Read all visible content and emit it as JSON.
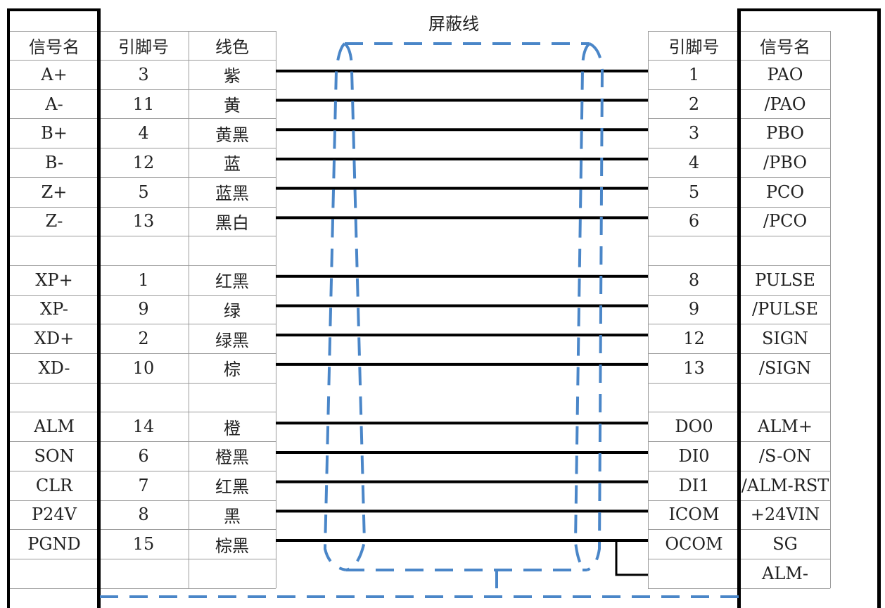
{
  "title": "屏蔽线",
  "left_headers": [
    "信号名",
    "引脚号",
    "线色"
  ],
  "right_headers": [
    "引脚号",
    "信号名"
  ],
  "rows": [
    {
      "left_signal": "A+",
      "left_pin": "3",
      "color": "紫",
      "right_pin": "1",
      "right_signal": "PAO",
      "wire": true
    },
    {
      "left_signal": "A-",
      "left_pin": "11",
      "color": "黄",
      "right_pin": "2",
      "right_signal": "/PAO",
      "wire": true
    },
    {
      "left_signal": "B+",
      "left_pin": "4",
      "color": "黄黑",
      "right_pin": "3",
      "right_signal": "PBO",
      "wire": true
    },
    {
      "left_signal": "B-",
      "left_pin": "12",
      "color": "蓝",
      "right_pin": "4",
      "right_signal": "/PBO",
      "wire": true
    },
    {
      "left_signal": "Z+",
      "left_pin": "5",
      "color": "蓝黑",
      "right_pin": "5",
      "right_signal": "PCO",
      "wire": true
    },
    {
      "left_signal": "Z-",
      "left_pin": "13",
      "color": "黑白",
      "right_pin": "6",
      "right_signal": "/PCO",
      "wire": true
    },
    {
      "left_signal": "",
      "left_pin": "",
      "color": "",
      "right_pin": "",
      "right_signal": "",
      "wire": false
    },
    {
      "left_signal": "XP+",
      "left_pin": "1",
      "color": "红黑",
      "right_pin": "8",
      "right_signal": "PULSE",
      "wire": true
    },
    {
      "left_signal": "XP-",
      "left_pin": "9",
      "color": "绿",
      "right_pin": "9",
      "right_signal": "/PULSE",
      "wire": true
    },
    {
      "left_signal": "XD+",
      "left_pin": "2",
      "color": "绿黑",
      "right_pin": "12",
      "right_signal": "SIGN",
      "wire": true
    },
    {
      "left_signal": "XD-",
      "left_pin": "10",
      "color": "棕",
      "right_pin": "13",
      "right_signal": "/SIGN",
      "wire": true
    },
    {
      "left_signal": "",
      "left_pin": "",
      "color": "",
      "right_pin": "",
      "right_signal": "",
      "wire": false
    },
    {
      "left_signal": "ALM",
      "left_pin": "14",
      "color": "橙",
      "right_pin": "DO0",
      "right_signal": "ALM+",
      "wire": true
    },
    {
      "left_signal": "SON",
      "left_pin": "6",
      "color": "橙黑",
      "right_pin": "DI0",
      "right_signal": "/S-ON",
      "wire": true
    },
    {
      "left_signal": "CLR",
      "left_pin": "7",
      "color": "红黑",
      "right_pin": "DI1",
      "right_signal": "/ALM-RST",
      "wire": true
    },
    {
      "left_signal": "P24V",
      "left_pin": "8",
      "color": "黑",
      "right_pin": "ICOM",
      "right_signal": "+24VIN",
      "wire": true
    },
    {
      "left_signal": "PGND",
      "left_pin": "15",
      "color": "棕黑",
      "right_pin": "OCOM",
      "right_signal": "SG",
      "wire": true
    },
    {
      "left_signal": "",
      "left_pin": "",
      "color": "",
      "right_pin": "",
      "right_signal": "ALM-",
      "wire": false
    }
  ],
  "colors": {
    "wire": "#000000",
    "shield": "#4a86c8",
    "grid": "#9a9a9a",
    "frame": "#000000"
  }
}
